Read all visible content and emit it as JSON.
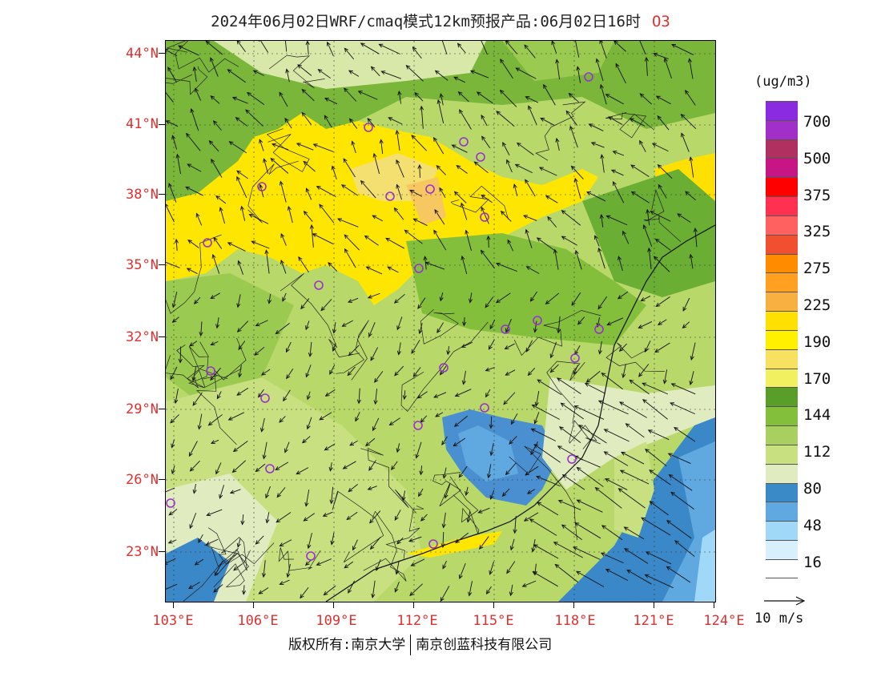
{
  "title": {
    "text": "2024年06月02日WRF/cmaq模式12km预报产品:06月02日16时",
    "species": "O3"
  },
  "axes": {
    "lat_labels": [
      "44°N",
      "41°N",
      "38°N",
      "35°N",
      "32°N",
      "29°N",
      "26°N",
      "23°N"
    ],
    "lon_labels": [
      "103°E",
      "106°E",
      "109°E",
      "112°E",
      "115°E",
      "118°E",
      "121°E",
      "124°E"
    ]
  },
  "legend": {
    "unit": "(ug/m3)",
    "labels": [
      "700",
      "500",
      "375",
      "325",
      "275",
      "225",
      "190",
      "170",
      "144",
      "112",
      "80",
      "48",
      "16"
    ],
    "colors": [
      "#8a2be2",
      "#9932cc",
      "#b03060",
      "#c71585",
      "#ff0000",
      "#ff3050",
      "#ff6060",
      "#f05030",
      "#ff8c00",
      "#ffa020",
      "#f8b040",
      "#ffe000",
      "#fff000",
      "#f8e060",
      "#f0f060",
      "#5a9e2a",
      "#84bf3c",
      "#a8d060",
      "#c8e080",
      "#e0ecc0",
      "#3a8ac8",
      "#60a8e0",
      "#a0d8f8",
      "#d8f0fc",
      "#ffffff"
    ]
  },
  "vector_key": {
    "label": "10 m/s"
  },
  "copyright": {
    "left": "版权所有:南京大学",
    "right": "南京创蓝科技有限公司"
  }
}
